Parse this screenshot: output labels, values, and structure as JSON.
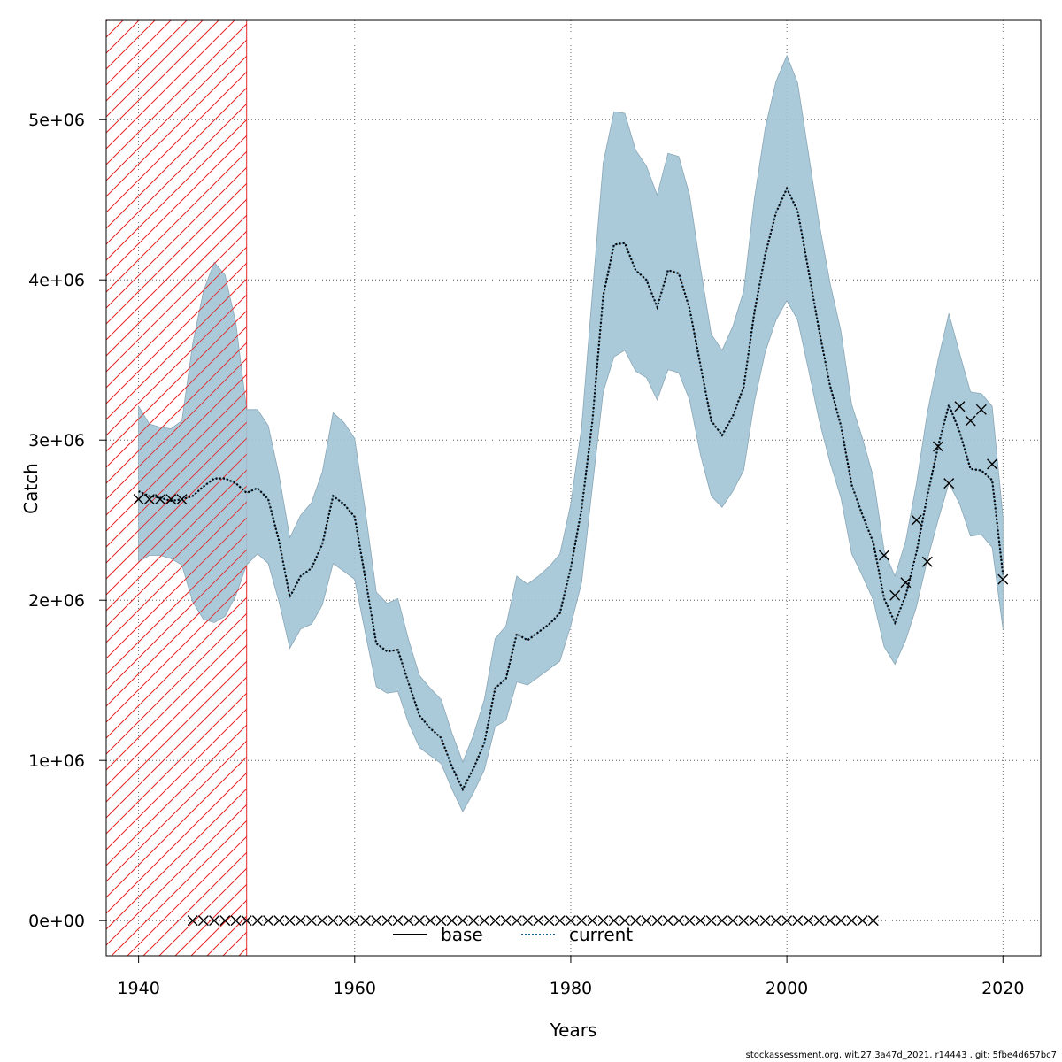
{
  "chart_data": {
    "type": "line",
    "xlabel": "Years",
    "ylabel": "Catch",
    "xlim": [
      1937,
      2023.5
    ],
    "ylim": [
      -220000,
      5620000
    ],
    "x_ticks": [
      {
        "value": 1940,
        "label": "1940"
      },
      {
        "value": 1960,
        "label": "1960"
      },
      {
        "value": 1980,
        "label": "1980"
      },
      {
        "value": 2000,
        "label": "2000"
      },
      {
        "value": 2020,
        "label": "2020"
      }
    ],
    "y_ticks": [
      {
        "value": 0,
        "label": "0e+00"
      },
      {
        "value": 1000000,
        "label": "1e+06"
      },
      {
        "value": 2000000,
        "label": "2e+06"
      },
      {
        "value": 3000000,
        "label": "3e+06"
      },
      {
        "value": 4000000,
        "label": "4e+06"
      },
      {
        "value": 5000000,
        "label": "5e+06"
      }
    ],
    "grid": true,
    "shaded_period": [
      1937,
      1950
    ],
    "legend": {
      "placement": "bottom-center",
      "entries": [
        {
          "label": "base",
          "style": "solid",
          "color": "#000000"
        },
        {
          "label": "current",
          "style": "dotted",
          "color": "#1f5f8b"
        }
      ]
    },
    "series": [
      {
        "name": "current",
        "style": "dotted",
        "years": [
          1940,
          1941,
          1942,
          1943,
          1944,
          1945,
          1946,
          1947,
          1948,
          1949,
          1950,
          1951,
          1952,
          1953,
          1954,
          1955,
          1956,
          1957,
          1958,
          1959,
          1960,
          1961,
          1962,
          1963,
          1964,
          1965,
          1966,
          1967,
          1968,
          1969,
          1970,
          1971,
          1972,
          1973,
          1974,
          1975,
          1976,
          1977,
          1978,
          1979,
          1980,
          1981,
          1982,
          1983,
          1984,
          1985,
          1986,
          1987,
          1988,
          1989,
          1990,
          1991,
          1992,
          1993,
          1994,
          1995,
          1996,
          1997,
          1998,
          1999,
          2000,
          2001,
          2002,
          2003,
          2004,
          2005,
          2006,
          2007,
          2008,
          2009,
          2010,
          2011,
          2012,
          2013,
          2014,
          2015,
          2016,
          2017,
          2018,
          2019,
          2020
        ],
        "values": [
          2680000,
          2650000,
          2640000,
          2620000,
          2630000,
          2650000,
          2710000,
          2760000,
          2760000,
          2730000,
          2670000,
          2700000,
          2630000,
          2370000,
          2020000,
          2150000,
          2200000,
          2350000,
          2650000,
          2600000,
          2520000,
          2130000,
          1730000,
          1680000,
          1690000,
          1480000,
          1280000,
          1200000,
          1140000,
          960000,
          820000,
          950000,
          1110000,
          1450000,
          1510000,
          1790000,
          1750000,
          1800000,
          1850000,
          1920000,
          2200000,
          2570000,
          3120000,
          3900000,
          4220000,
          4230000,
          4060000,
          4000000,
          3830000,
          4060000,
          4040000,
          3820000,
          3470000,
          3120000,
          3030000,
          3150000,
          3330000,
          3800000,
          4160000,
          4420000,
          4570000,
          4430000,
          4060000,
          3680000,
          3340000,
          3090000,
          2720000,
          2530000,
          2360000,
          2010000,
          1860000,
          2030000,
          2300000,
          2650000,
          2960000,
          3220000,
          3050000,
          2820000,
          2810000,
          2750000,
          2160000
        ]
      }
    ],
    "confidence_band": {
      "years": [
        1940,
        1941,
        1942,
        1943,
        1944,
        1945,
        1946,
        1947,
        1948,
        1949,
        1950,
        1951,
        1952,
        1953,
        1954,
        1955,
        1956,
        1957,
        1958,
        1959,
        1960,
        1961,
        1962,
        1963,
        1964,
        1965,
        1966,
        1967,
        1968,
        1969,
        1970,
        1971,
        1972,
        1973,
        1974,
        1975,
        1976,
        1977,
        1978,
        1979,
        1980,
        1981,
        1982,
        1983,
        1984,
        1985,
        1986,
        1987,
        1988,
        1989,
        1990,
        1991,
        1992,
        1993,
        1994,
        1995,
        1996,
        1997,
        1998,
        1999,
        2000,
        2001,
        2002,
        2003,
        2004,
        2005,
        2006,
        2007,
        2008,
        2009,
        2010,
        2011,
        2012,
        2013,
        2014,
        2015,
        2016,
        2017,
        2018,
        2019,
        2020
      ],
      "upper": [
        3210000,
        3100000,
        3080000,
        3070000,
        3120000,
        3600000,
        3930000,
        4110000,
        4030000,
        3730000,
        3190000,
        3190000,
        3090000,
        2780000,
        2390000,
        2530000,
        2610000,
        2800000,
        3170000,
        3110000,
        3010000,
        2550000,
        2050000,
        1980000,
        2010000,
        1750000,
        1530000,
        1450000,
        1380000,
        1170000,
        990000,
        1160000,
        1380000,
        1760000,
        1840000,
        2150000,
        2100000,
        2150000,
        2210000,
        2290000,
        2600000,
        3080000,
        3920000,
        4730000,
        5050000,
        5040000,
        4810000,
        4710000,
        4530000,
        4790000,
        4770000,
        4530000,
        4080000,
        3660000,
        3560000,
        3710000,
        3930000,
        4510000,
        4950000,
        5240000,
        5400000,
        5230000,
        4790000,
        4350000,
        3980000,
        3680000,
        3220000,
        3010000,
        2770000,
        2310000,
        2150000,
        2370000,
        2730000,
        3170000,
        3500000,
        3790000,
        3540000,
        3300000,
        3290000,
        3210000,
        2520000
      ],
      "lower": [
        2240000,
        2280000,
        2280000,
        2260000,
        2220000,
        1990000,
        1880000,
        1860000,
        1900000,
        2030000,
        2220000,
        2290000,
        2230000,
        1990000,
        1700000,
        1820000,
        1850000,
        1970000,
        2230000,
        2180000,
        2130000,
        1790000,
        1460000,
        1420000,
        1430000,
        1230000,
        1080000,
        1030000,
        980000,
        820000,
        680000,
        800000,
        940000,
        1210000,
        1250000,
        1490000,
        1470000,
        1520000,
        1570000,
        1620000,
        1840000,
        2110000,
        2710000,
        3300000,
        3520000,
        3560000,
        3430000,
        3390000,
        3250000,
        3440000,
        3420000,
        3250000,
        2910000,
        2650000,
        2580000,
        2680000,
        2810000,
        3240000,
        3550000,
        3750000,
        3870000,
        3750000,
        3440000,
        3120000,
        2860000,
        2640000,
        2290000,
        2150000,
        2000000,
        1710000,
        1600000,
        1750000,
        1960000,
        2250000,
        2500000,
        2730000,
        2600000,
        2400000,
        2410000,
        2330000,
        1820000
      ]
    },
    "observations": {
      "marker": "x",
      "points": [
        {
          "x": 1940,
          "y": 2630000
        },
        {
          "x": 1941,
          "y": 2630000
        },
        {
          "x": 1942,
          "y": 2630000
        },
        {
          "x": 1943,
          "y": 2630000
        },
        {
          "x": 1944,
          "y": 2630000
        },
        {
          "x": 1945,
          "y": 0
        },
        {
          "x": 1946,
          "y": 0
        },
        {
          "x": 1947,
          "y": 0
        },
        {
          "x": 1948,
          "y": 0
        },
        {
          "x": 1949,
          "y": 0
        },
        {
          "x": 1950,
          "y": 0
        },
        {
          "x": 1951,
          "y": 0
        },
        {
          "x": 1952,
          "y": 0
        },
        {
          "x": 1953,
          "y": 0
        },
        {
          "x": 1954,
          "y": 0
        },
        {
          "x": 1955,
          "y": 0
        },
        {
          "x": 1956,
          "y": 0
        },
        {
          "x": 1957,
          "y": 0
        },
        {
          "x": 1958,
          "y": 0
        },
        {
          "x": 1959,
          "y": 0
        },
        {
          "x": 1960,
          "y": 0
        },
        {
          "x": 1961,
          "y": 0
        },
        {
          "x": 1962,
          "y": 0
        },
        {
          "x": 1963,
          "y": 0
        },
        {
          "x": 1964,
          "y": 0
        },
        {
          "x": 1965,
          "y": 0
        },
        {
          "x": 1966,
          "y": 0
        },
        {
          "x": 1967,
          "y": 0
        },
        {
          "x": 1968,
          "y": 0
        },
        {
          "x": 1969,
          "y": 0
        },
        {
          "x": 1970,
          "y": 0
        },
        {
          "x": 1971,
          "y": 0
        },
        {
          "x": 1972,
          "y": 0
        },
        {
          "x": 1973,
          "y": 0
        },
        {
          "x": 1974,
          "y": 0
        },
        {
          "x": 1975,
          "y": 0
        },
        {
          "x": 1976,
          "y": 0
        },
        {
          "x": 1977,
          "y": 0
        },
        {
          "x": 1978,
          "y": 0
        },
        {
          "x": 1979,
          "y": 0
        },
        {
          "x": 1980,
          "y": 0
        },
        {
          "x": 1981,
          "y": 0
        },
        {
          "x": 1982,
          "y": 0
        },
        {
          "x": 1983,
          "y": 0
        },
        {
          "x": 1984,
          "y": 0
        },
        {
          "x": 1985,
          "y": 0
        },
        {
          "x": 1986,
          "y": 0
        },
        {
          "x": 1987,
          "y": 0
        },
        {
          "x": 1988,
          "y": 0
        },
        {
          "x": 1989,
          "y": 0
        },
        {
          "x": 1990,
          "y": 0
        },
        {
          "x": 1991,
          "y": 0
        },
        {
          "x": 1992,
          "y": 0
        },
        {
          "x": 1993,
          "y": 0
        },
        {
          "x": 1994,
          "y": 0
        },
        {
          "x": 1995,
          "y": 0
        },
        {
          "x": 1996,
          "y": 0
        },
        {
          "x": 1997,
          "y": 0
        },
        {
          "x": 1998,
          "y": 0
        },
        {
          "x": 1999,
          "y": 0
        },
        {
          "x": 2000,
          "y": 0
        },
        {
          "x": 2001,
          "y": 0
        },
        {
          "x": 2002,
          "y": 0
        },
        {
          "x": 2003,
          "y": 0
        },
        {
          "x": 2004,
          "y": 0
        },
        {
          "x": 2005,
          "y": 0
        },
        {
          "x": 2006,
          "y": 0
        },
        {
          "x": 2007,
          "y": 0
        },
        {
          "x": 2008,
          "y": 0
        },
        {
          "x": 2009,
          "y": 2280000
        },
        {
          "x": 2010,
          "y": 2030000
        },
        {
          "x": 2011,
          "y": 2110000
        },
        {
          "x": 2012,
          "y": 2500000
        },
        {
          "x": 2013,
          "y": 2240000
        },
        {
          "x": 2014,
          "y": 2960000
        },
        {
          "x": 2015,
          "y": 2730000
        },
        {
          "x": 2016,
          "y": 3210000
        },
        {
          "x": 2017,
          "y": 3120000
        },
        {
          "x": 2018,
          "y": 3190000
        },
        {
          "x": 2019,
          "y": 2850000
        },
        {
          "x": 2020,
          "y": 2130000
        }
      ]
    },
    "colors": {
      "band": "#a3c4d6",
      "band_stroke": "#8aa7b6",
      "current_line": "#1f5f8b",
      "shade_hatch": "#e8272b",
      "grid": "#444444"
    }
  },
  "footer": "stockassessment.org, wit.27.3a47d_2021, r14443 , git: 5fbe4d657bc7"
}
